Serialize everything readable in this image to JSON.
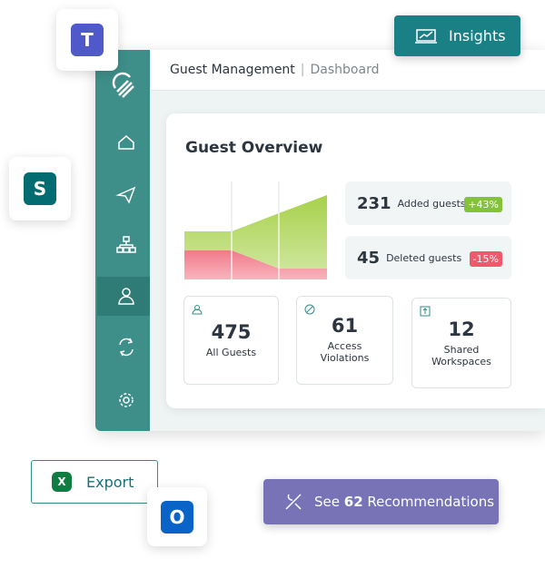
{
  "insights_button": "Insights",
  "header": {
    "title": "Guest Management",
    "breadcrumb": "Dashboard"
  },
  "overview": {
    "title": "Guest Overview",
    "added": {
      "count": 231,
      "label": "Added guests",
      "change": "+43%"
    },
    "deleted": {
      "count": 45,
      "label": "Deleted guests",
      "change": "-15%"
    },
    "tiles": [
      {
        "value": 475,
        "label": "All Guests"
      },
      {
        "value": 61,
        "label": "Access Violations"
      },
      {
        "value": 12,
        "label": "Shared Workspaces"
      }
    ]
  },
  "export_button": "Export",
  "recommendations": {
    "prefix": "See",
    "count": 62,
    "suffix": "Recommendations"
  },
  "app_icons": {
    "teams": "T",
    "sharepoint": "S",
    "excel": "X",
    "outlook": "O"
  }
}
